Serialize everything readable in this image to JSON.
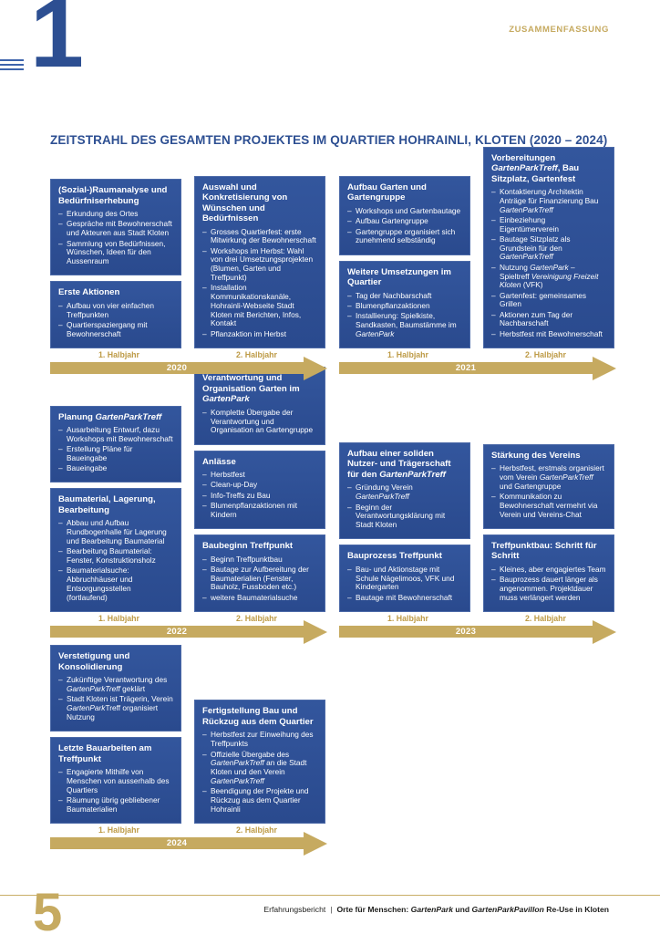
{
  "page": {
    "chapter_number": "1",
    "section_label": "ZUSAMMENFASSUNG",
    "title": "ZEITSTRAHL DES GESAMTEN PROJEKTES IM QUARTIER HOHRAINLI, KLOTEN (2020 – 2024)",
    "page_number": "5",
    "footer_left": "Erfahrungsbericht",
    "footer_separator": "|",
    "footer_right": "Orte für Menschen: *GartenPark* und *GartenParkPavillon* Re-Use in Kloten"
  },
  "colors": {
    "box_blue": "#2d4f92",
    "gold": "#c6aa60",
    "label_gold": "#bd9a45"
  },
  "labels": {
    "first_half": "1. Halbjahr",
    "second_half": "2. Halbjahr"
  },
  "timeline": {
    "rows": [
      {
        "periods": [
          {
            "year": "2020",
            "columns": [
              [
                {
                  "title": "(Sozial-)Raumanalyse und Bedürfniserhebung",
                  "items": [
                    "Erkundung des Ortes",
                    "Gespräche mit Bewohnerschaft und Akteuren aus Stadt Kloten",
                    "Sammlung von Bedürfnissen, Wünschen, Ideen für den Aussenraum"
                  ]
                },
                {
                  "title": "Erste Aktionen",
                  "items": [
                    "Aufbau von vier einfachen Treffpunkten",
                    "Quartierspaziergang mit Bewohnerschaft"
                  ]
                }
              ],
              [
                {
                  "title": "Auswahl und Konkretisierung von Wünschen und Bedürfnissen",
                  "items": [
                    "Grosses Quartierfest: erste Mitwirkung der Bewohnerschaft",
                    "Workshops im Herbst: Wahl von drei Umsetzungsprojekten (Blumen, Garten und Treffpunkt)",
                    "Installation Kommunikationskanäle, Hohrainli-Webseite Stadt Kloten mit Berichten, Infos, Kontakt",
                    "Pflanzaktion im Herbst"
                  ]
                }
              ]
            ]
          },
          {
            "year": "2021",
            "columns": [
              [
                {
                  "title": "Aufbau Garten und Gartengruppe",
                  "items": [
                    "Workshops und Gartenbautage",
                    "Aufbau Gartengruppe",
                    "Gartengruppe organisiert sich zunehmend selbständig"
                  ]
                },
                {
                  "title": "Weitere Umsetzungen im Quartier",
                  "items": [
                    "Tag der Nachbarschaft",
                    "Blumenpflanzaktionen",
                    "Installierung: Spielkiste, Sandkasten, Baumstämme im *GartenPark*"
                  ]
                }
              ],
              [
                {
                  "title": "Vorbereitungen *GartenParkTreff*, Bau Sitzplatz, Gartenfest",
                  "items": [
                    "Kontaktierung Architektin Anträge für Finanzierung Bau *GartenParkTreff*",
                    "Einbeziehung Eigentümerverein",
                    "Bautage Sitzplatz als Grundstein für den *GartenParkTreff*",
                    "Nutzung *GartenPark* – Spieltreff *Vereinigung Freizeit Kloten* (VFK)",
                    "Gartenfest: gemeinsames Grillen",
                    "Aktionen zum Tag der Nachbarschaft",
                    "Herbstfest mit Bewohnerschaft"
                  ]
                }
              ]
            ]
          }
        ]
      },
      {
        "periods": [
          {
            "year": "2022",
            "columns": [
              [
                {
                  "title": "Planung *GartenParkTreff*",
                  "items": [
                    "Ausarbeitung Entwurf, dazu Workshops mit Bewohnerschaft",
                    "Erstellung Pläne für Baueingabe",
                    "Baueingabe"
                  ]
                },
                {
                  "title": "Baumaterial, Lagerung, Bearbeitung",
                  "items": [
                    "Abbau und Aufbau Rundbogenhalle für Lagerung und Bearbeitung Baumaterial",
                    "Bearbeitung Baumaterial: Fenster, Konstruktionsholz",
                    "Baumaterialsuche: Abbruchhäuser und Entsorgungsstellen (fortlaufend)"
                  ]
                }
              ],
              [
                {
                  "title": "Verantwortung und Organisation Garten im *GartenPark*",
                  "items": [
                    "Komplette Übergabe der Verantwortung und Organisation an Gartengruppe"
                  ]
                },
                {
                  "title": "Anlässe",
                  "items": [
                    "Herbstfest",
                    "Clean-up-Day",
                    "Info-Treffs zu Bau",
                    "Blumenpflanzaktionen mit Kindern"
                  ]
                },
                {
                  "title": "Baubeginn Treffpunkt",
                  "items": [
                    "Beginn Treffpunktbau",
                    "Bautage zur Aufbereitung der Baumaterialien (Fenster, Bauholz, Fussboden etc.)",
                    "weitere Baumaterialsuche"
                  ]
                }
              ]
            ]
          },
          {
            "year": "2023",
            "columns": [
              [
                {
                  "title": "Aufbau einer soliden Nutzer- und Trägerschaft für den *GartenParkTreff*",
                  "items": [
                    "Gründung Verein *GartenParkTreff*",
                    "Beginn der Verantwortungsklärung mit Stadt Kloten"
                  ]
                },
                {
                  "title": "Bauprozess Treffpunkt",
                  "items": [
                    "Bau- und Aktionstage mit Schule Nägelimoos, VFK und Kindergarten",
                    "Bautage mit Bewohnerschaft"
                  ]
                }
              ],
              [
                {
                  "title": "Stärkung des Vereins",
                  "items": [
                    "Herbstfest, erstmals organisiert vom Verein *GartenParkTreff* und Gartengruppe",
                    "Kommunikation zu Bewohnerschaft vermehrt via Verein und Vereins-Chat"
                  ]
                },
                {
                  "title": "Treffpunktbau: Schritt für Schritt",
                  "items": [
                    "Kleines, aber engagiertes Team",
                    "Bauprozess dauert länger als angenommen. Projektdauer muss verlängert werden"
                  ]
                }
              ]
            ]
          }
        ]
      },
      {
        "periods": [
          {
            "year": "2024",
            "columns": [
              [
                {
                  "title": "Verstetigung und Konsolidierung",
                  "items": [
                    "Zukünftige Verantwortung des *GartenParkTreff* geklärt",
                    "Stadt Kloten ist Trägerin, Verein *GartenPark*Treff organisiert Nutzung"
                  ]
                },
                {
                  "title": "Letzte Bauarbeiten am Treffpunkt",
                  "items": [
                    "Engagierte Mithilfe von Menschen von ausserhalb des Quartiers",
                    "Räumung übrig gebliebener Baumaterialien"
                  ]
                }
              ],
              [
                {
                  "title": "Fertigstellung Bau und Rückzug aus dem Quartier",
                  "items": [
                    "Herbstfest zur Einweihung des Treffpunkts",
                    "Offizielle Übergabe des *GartenParkTreff* an die Stadt Kloten und den Verein *GartenParkTreff*",
                    "Beendigung der Projekte und Rückzug aus dem Quartier Hohrainli"
                  ]
                }
              ]
            ]
          }
        ]
      }
    ]
  }
}
